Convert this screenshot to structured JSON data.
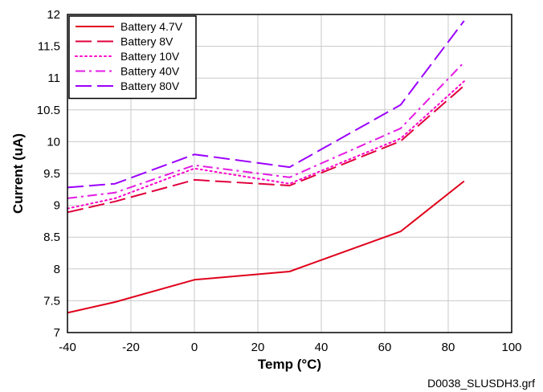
{
  "chart_data": {
    "type": "line",
    "xlabel": "Temp (°C)",
    "ylabel": "Current (uA)",
    "xlim": [
      -40,
      100
    ],
    "ylim": [
      7,
      12
    ],
    "xticks": [
      -40,
      -20,
      0,
      20,
      40,
      60,
      80,
      100
    ],
    "yticks": [
      7,
      7.5,
      8,
      8.5,
      9,
      9.5,
      10,
      10.5,
      11,
      11.5,
      12
    ],
    "grid": true,
    "legend_position": "top-left",
    "series": [
      {
        "name": "Battery 4.7V",
        "color": "#e0001b",
        "dash": "solid",
        "x": [
          -40,
          -25,
          0,
          30,
          65,
          85
        ],
        "y": [
          7.31,
          7.48,
          7.83,
          7.96,
          8.59,
          9.38
        ]
      },
      {
        "name": "Battery 8V",
        "color": "#e0003c",
        "dash": "long-dash",
        "x": [
          -40,
          -25,
          0,
          30,
          65,
          85
        ],
        "y": [
          8.89,
          9.06,
          9.4,
          9.31,
          10.01,
          10.88
        ]
      },
      {
        "name": "Battery 10V",
        "color": "#ff00cc",
        "dash": "dotted",
        "x": [
          -40,
          -25,
          0,
          30,
          65,
          85
        ],
        "y": [
          8.95,
          9.11,
          9.58,
          9.34,
          10.05,
          10.95
        ]
      },
      {
        "name": "Battery 40V",
        "color": "#e41ce4",
        "dash": "dash-dot",
        "x": [
          -40,
          -25,
          0,
          30,
          65,
          85
        ],
        "y": [
          9.11,
          9.2,
          9.63,
          9.44,
          10.21,
          11.25
        ]
      },
      {
        "name": "Battery 80V",
        "color": "#9b00ff",
        "dash": "long-dash",
        "x": [
          -40,
          -25,
          0,
          30,
          65,
          85
        ],
        "y": [
          9.28,
          9.34,
          9.8,
          9.6,
          10.58,
          11.9
        ]
      }
    ]
  },
  "footer_label": "D0038_SLUSDH3.grf"
}
